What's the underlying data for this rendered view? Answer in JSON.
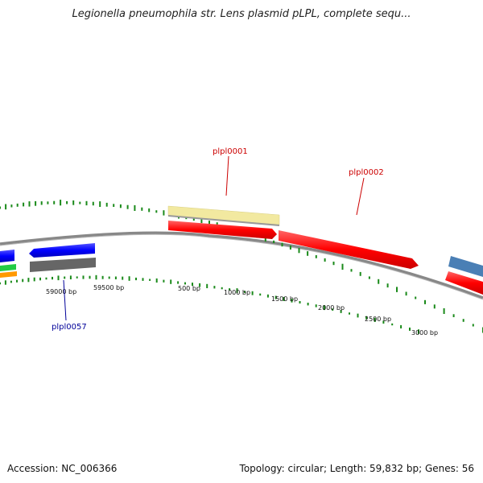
{
  "title": "Legionella pneumophila str. Lens plasmid pLPL, complete sequ...",
  "footer": {
    "accession": "Accession: NC_006366",
    "summary": "Topology: circular; Length: 59,832 bp; Genes: 56"
  },
  "ruler_labels": [
    "59000 bp",
    "59500 bp",
    "500 bp",
    "1000 bp",
    "1500 bp",
    "2000 bp",
    "2500 bp",
    "3000 bp"
  ],
  "gene_labels": [
    {
      "name": "plpl0001",
      "color": "#cc0000"
    },
    {
      "name": "plpl0002",
      "color": "#cc0000"
    },
    {
      "name": "plpl0057",
      "color": "#000099"
    }
  ],
  "colors": {
    "forward_gene": "#ff0000",
    "reverse_gene": "#0000ff",
    "annotation_band": "#f2e9a0",
    "gray_gene": "#666666",
    "blue_gene": "#4a7fb5",
    "green_gene": "#22cc44",
    "orange_gene": "#ff9900",
    "backbone": "#888888",
    "gc_tick": "#1a8a1a"
  }
}
